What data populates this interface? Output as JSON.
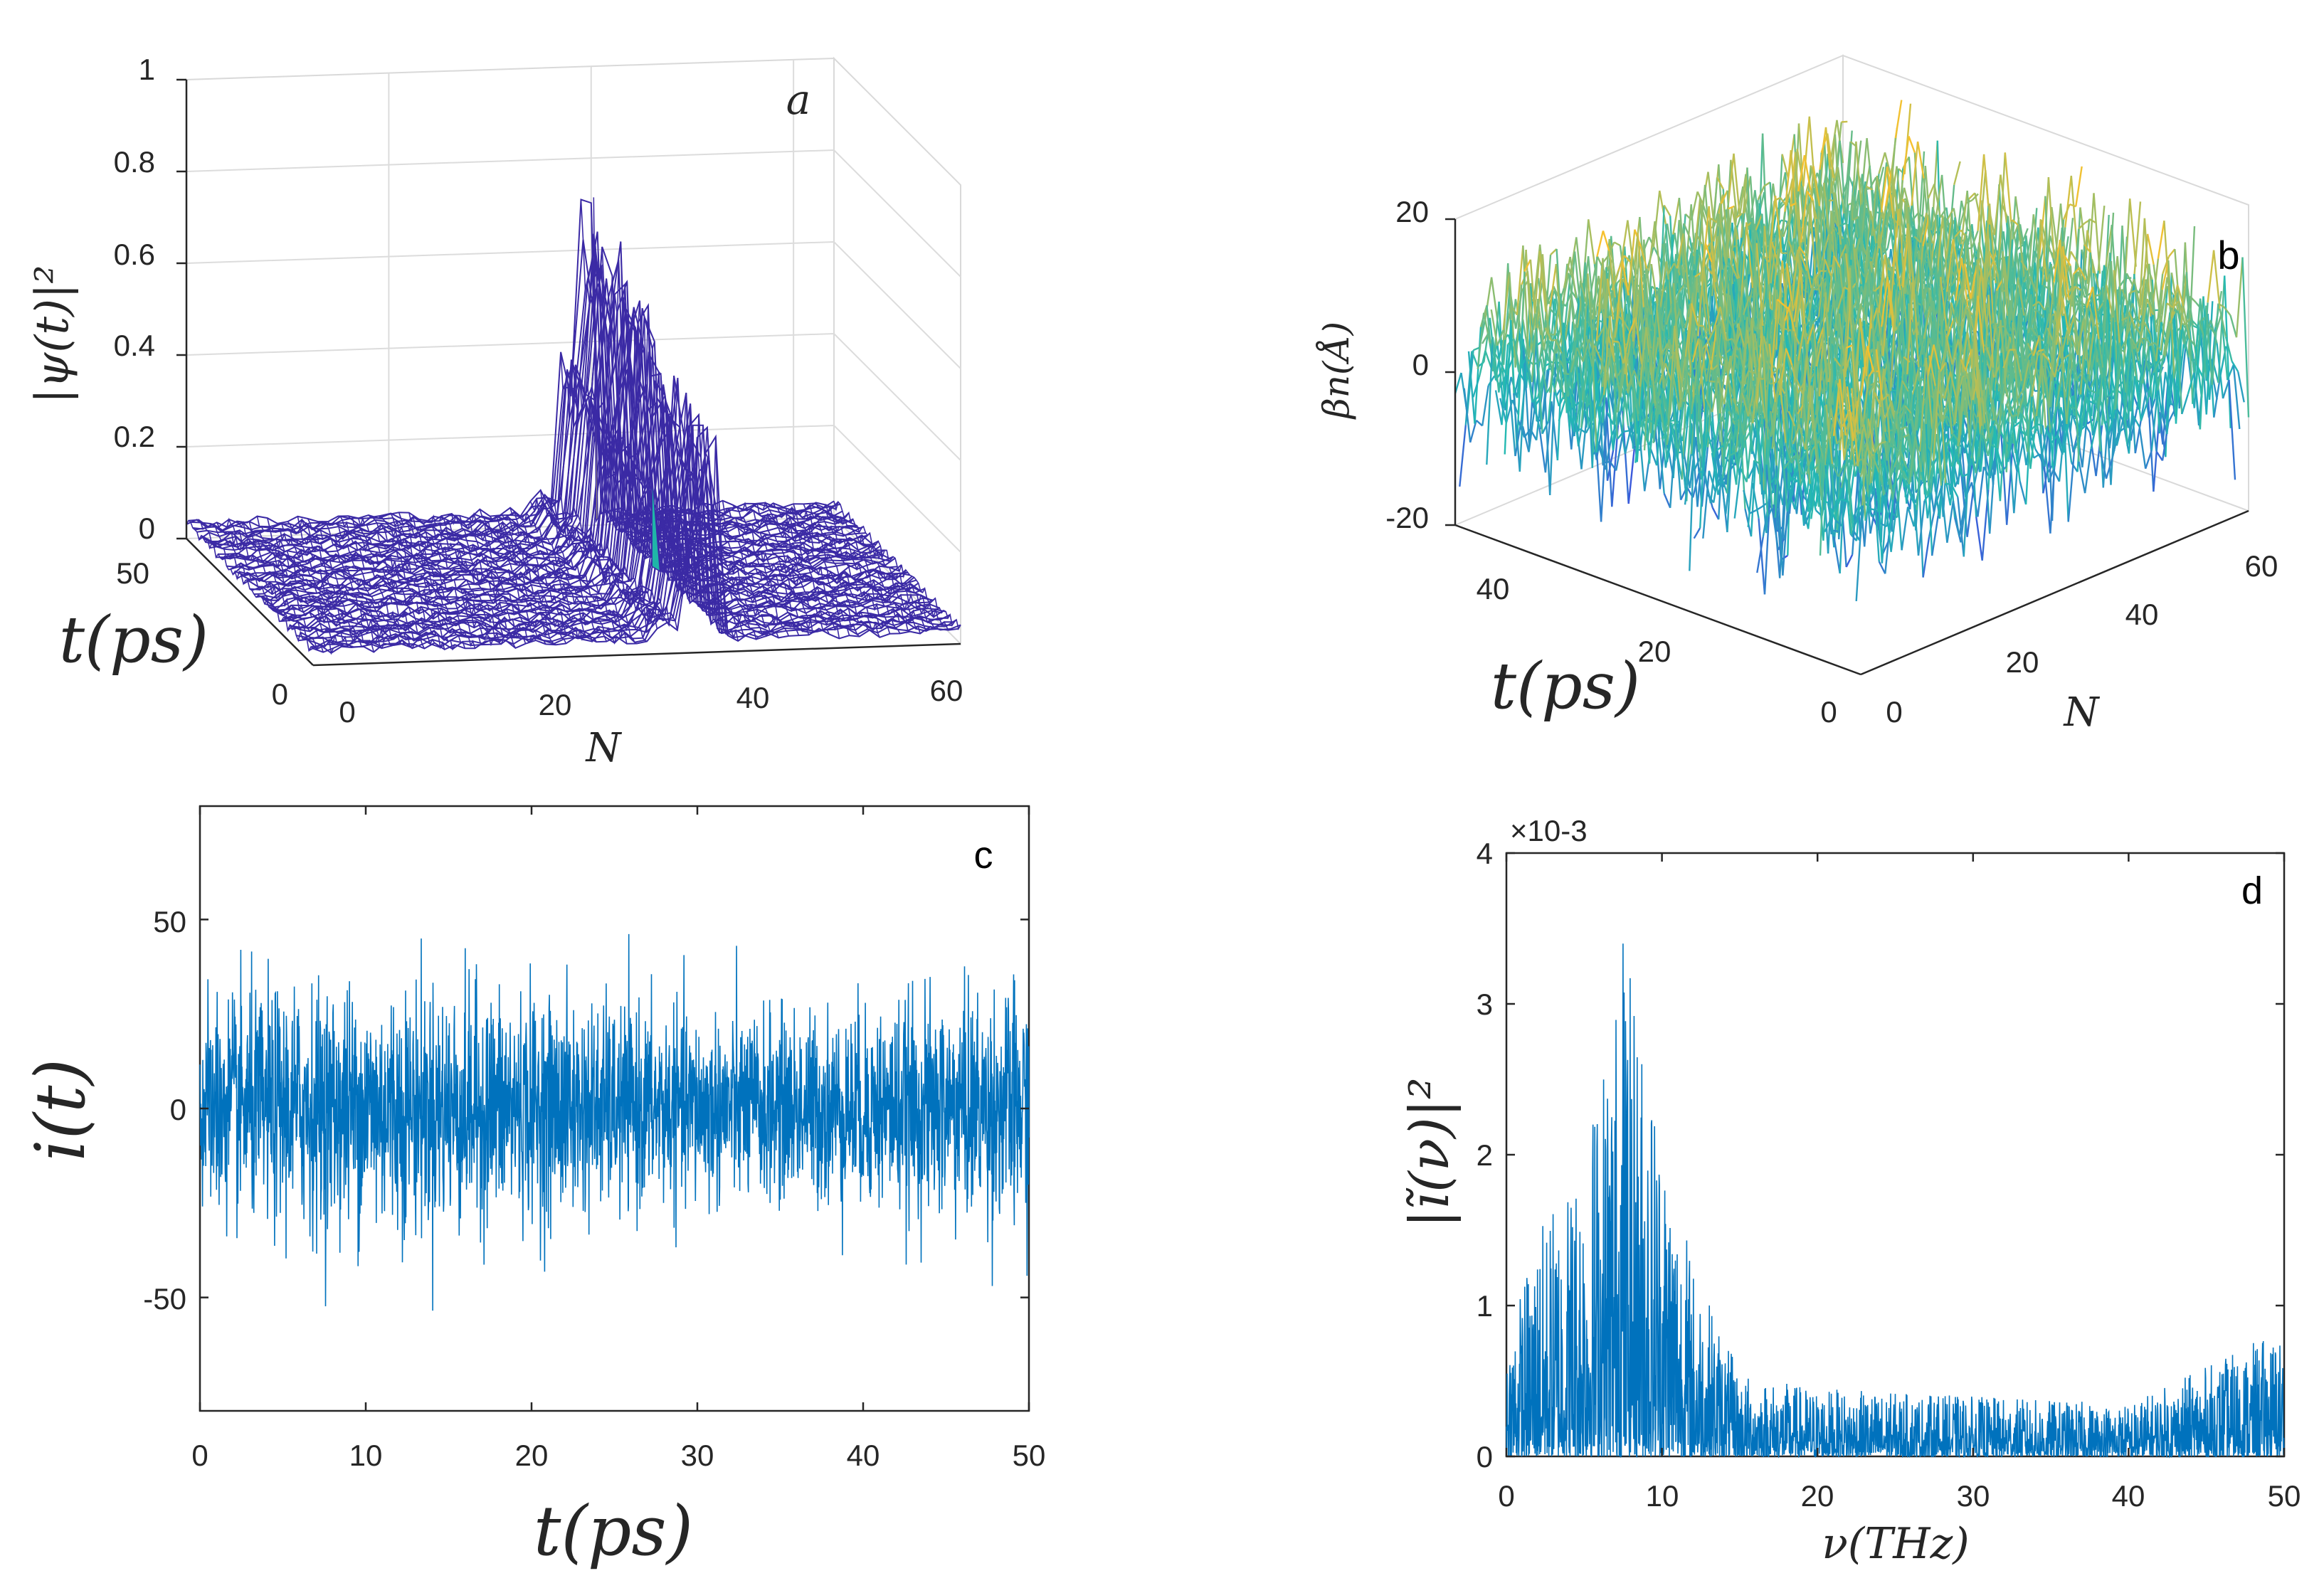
{
  "colors": {
    "wave_mesh": "#3b2aa5",
    "line_blue": "#0072bd",
    "surface_low": "#3e4fe0",
    "surface_mid": "#22b9b4",
    "surface_high": "#f6c12e",
    "spike_yellow": "#f2f24a"
  },
  "chart_data": [
    {
      "panel": "a",
      "type": "surface",
      "zlabel": "|ψ(t)|²",
      "xlabel": "N",
      "ylabel": "t(ps)",
      "xlim": [
        0,
        64
      ],
      "ylim": [
        0,
        50
      ],
      "zlim": [
        0,
        1
      ],
      "x_ticks": [
        "0",
        "20",
        "40",
        "60"
      ],
      "y_ticks": [
        "0",
        "50"
      ],
      "z_ticks": [
        "0",
        "0.2",
        "0.4",
        "0.6",
        "0.8",
        "1"
      ],
      "peak_site": 40,
      "peak_value": 0.72,
      "description_series": "probability density localized near site 38-40, background about 0.03"
    },
    {
      "panel": "b",
      "type": "surface",
      "zlabel": "βn(Å)",
      "xlabel": "N",
      "ylabel": "t(ps)",
      "xlim": [
        0,
        64
      ],
      "ylim": [
        0,
        50
      ],
      "zlim": [
        -20,
        20
      ],
      "x_ticks": [
        "0",
        "20",
        "40",
        "60"
      ],
      "y_ticks": [
        "0",
        "20",
        "40"
      ],
      "z_ticks": [
        "-20",
        "0",
        "20"
      ],
      "amplitude_range": [
        -15,
        15
      ]
    },
    {
      "panel": "c",
      "type": "line",
      "xlabel": "t(ps)",
      "ylabel": "i(t)",
      "xlim": [
        0,
        50
      ],
      "ylim": [
        -80,
        80
      ],
      "x_ticks": [
        "0",
        "10",
        "20",
        "30",
        "40",
        "50"
      ],
      "y_ticks": [
        "-50",
        "0",
        "50"
      ],
      "noise_std": 14,
      "extremes": {
        "max": 50,
        "min": -56
      }
    },
    {
      "panel": "d",
      "type": "line",
      "xlabel": "ν(THz)",
      "ylabel": "|ĩ(ν)|²",
      "xlim": [
        0,
        50
      ],
      "ylim": [
        0,
        4
      ],
      "y_scale_label": "×10-3",
      "x_ticks": [
        "0",
        "10",
        "20",
        "30",
        "40",
        "50"
      ],
      "y_ticks": [
        "0",
        "1",
        "2",
        "3",
        "4"
      ],
      "peak": {
        "x": 7.5,
        "y": 3.4
      },
      "envelope": [
        [
          0,
          0.8
        ],
        [
          2,
          1.5
        ],
        [
          5,
          2.1
        ],
        [
          7.5,
          3.4
        ],
        [
          10,
          2.3
        ],
        [
          12,
          1.3
        ],
        [
          15,
          0.55
        ],
        [
          20,
          0.45
        ],
        [
          30,
          0.4
        ],
        [
          40,
          0.35
        ],
        [
          50,
          0.85
        ]
      ]
    }
  ],
  "labels": {
    "panel_a": "a",
    "panel_b": "b",
    "panel_c": "c",
    "panel_d": "d"
  }
}
